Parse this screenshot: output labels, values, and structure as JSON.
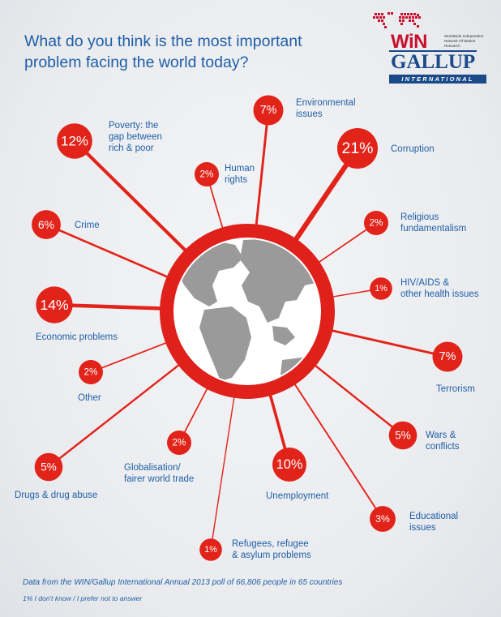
{
  "title": "What do you think is the most important problem facing the world today?",
  "logo": {
    "win_text": "WiN",
    "win_subtitle": "Worldwide Independent Network Of Market Research",
    "gallup_text": "GALLUP",
    "international_text": "INTERNATIONAL"
  },
  "footnote": "Data from the WIN/Gallup International Annual 2013 poll of 66,806 people in 65 countries",
  "footnote2": "1% I don't know / I prefer not to answer",
  "colors": {
    "accent_red": "#e2231a",
    "ring_red": "#e0201b",
    "globe_grey": "#9a9a9a",
    "text_blue": "#1f5fa8"
  },
  "chart_data": {
    "type": "pie",
    "title": "What do you think is the most important problem facing the world today?",
    "unit": "%",
    "categories": [
      "Poverty: the gap between rich & poor",
      "Human rights",
      "Environmental issues",
      "Corruption",
      "Religious fundamentalism",
      "HIV/AIDS & other health issues",
      "Terrorism",
      "Wars & conflicts",
      "Educational issues",
      "Unemployment",
      "Refugees, refugee & asylum problems",
      "Globalisation/ fairer world trade",
      "Drugs & drug abuse",
      "Other",
      "Economic problems",
      "Crime"
    ],
    "values": [
      12,
      2,
      7,
      21,
      2,
      1,
      7,
      5,
      3,
      10,
      1,
      2,
      5,
      2,
      14,
      6
    ],
    "value_labels": [
      "12%",
      "2%",
      "7%",
      "21%",
      "2%",
      "1%",
      "7%",
      "5%",
      "3%",
      "10%",
      "1%",
      "2%",
      "5%",
      "2%",
      "14%",
      "6%"
    ],
    "labels": [
      "Poverty: the\ngap between\nrich & poor",
      "Human\nrights",
      "Environmental\nissues",
      "Corruption",
      "Religious\nfundamentalism",
      "HIV/AIDS &\nother health issues",
      "Terrorism",
      "Wars &\nconflicts",
      "Educational\nissues",
      "Unemployment",
      "Refugees, refugee\n& asylum problems",
      "Globalisation/\nfairer world trade",
      "Drugs & drug abuse",
      "Other",
      "Economic problems",
      "Crime"
    ]
  }
}
